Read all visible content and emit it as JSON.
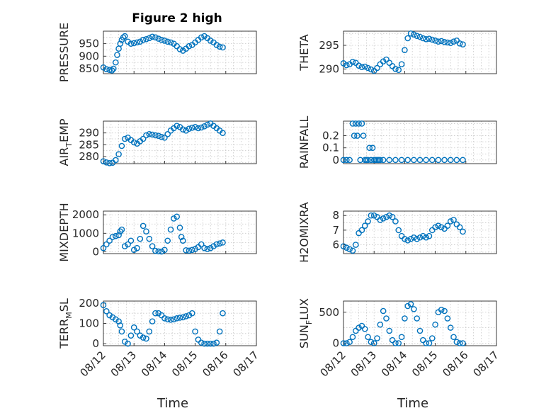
{
  "figure_title": "Figure 2 high",
  "x_axis_label": "Time",
  "x_tick_labels": [
    "08/12",
    "08/13",
    "08/14",
    "08/15",
    "08/16",
    "08/17"
  ],
  "chart_data": [
    {
      "type": "scatter",
      "ylabel": "PRESSURE",
      "ylabel_sub": "",
      "ylim": [
        830,
        1000
      ],
      "yticks": [
        850,
        900,
        950
      ],
      "x": [
        0,
        0.1,
        0.2,
        0.28,
        0.33,
        0.4,
        0.45,
        0.5,
        0.55,
        0.6,
        0.65,
        0.7,
        0.8,
        0.9,
        1.0,
        1.1,
        1.2,
        1.3,
        1.4,
        1.5,
        1.6,
        1.7,
        1.8,
        1.9,
        2.0,
        2.1,
        2.2,
        2.3,
        2.4,
        2.5,
        2.6,
        2.7,
        2.8,
        2.9,
        3.0,
        3.1,
        3.2,
        3.3,
        3.4,
        3.5,
        3.6,
        3.7,
        3.8,
        3.9
      ],
      "y": [
        855,
        848,
        845,
        843,
        850,
        875,
        905,
        930,
        950,
        965,
        975,
        980,
        958,
        950,
        952,
        955,
        958,
        965,
        968,
        972,
        978,
        975,
        970,
        965,
        962,
        958,
        955,
        950,
        940,
        928,
        922,
        930,
        940,
        945,
        955,
        965,
        975,
        980,
        972,
        962,
        955,
        945,
        938,
        935
      ]
    },
    {
      "type": "scatter",
      "ylabel": "THETA",
      "ylabel_sub": "",
      "ylim": [
        289,
        298
      ],
      "yticks": [
        290,
        295
      ],
      "x": [
        0,
        0.1,
        0.2,
        0.3,
        0.4,
        0.5,
        0.6,
        0.7,
        0.8,
        0.9,
        1.0,
        1.1,
        1.2,
        1.3,
        1.4,
        1.5,
        1.6,
        1.7,
        1.8,
        1.9,
        2.0,
        2.1,
        2.2,
        2.3,
        2.4,
        2.5,
        2.6,
        2.7,
        2.8,
        2.9,
        3.0,
        3.1,
        3.2,
        3.3,
        3.4,
        3.5,
        3.6,
        3.7,
        3.8,
        3.9
      ],
      "y": [
        291.2,
        290.8,
        291.0,
        291.5,
        291.3,
        290.7,
        290.4,
        290.5,
        290.2,
        289.9,
        289.6,
        290.2,
        291.0,
        291.6,
        292.0,
        291.3,
        290.6,
        290.0,
        289.8,
        291.0,
        294.0,
        296.5,
        297.5,
        297.3,
        297.0,
        296.8,
        296.5,
        296.3,
        296.4,
        296.2,
        296.0,
        295.8,
        295.9,
        295.7,
        295.6,
        295.5,
        295.8,
        296.0,
        295.4,
        295.2
      ]
    },
    {
      "type": "scatter",
      "ylabel": "AIR",
      "ylabel_sub": "T",
      "ylabel_rest": "EMP",
      "ylim": [
        277,
        295
      ],
      "yticks": [
        280,
        285,
        290
      ],
      "x": [
        0,
        0.1,
        0.2,
        0.3,
        0.4,
        0.5,
        0.6,
        0.7,
        0.8,
        0.9,
        1.0,
        1.1,
        1.2,
        1.3,
        1.4,
        1.5,
        1.6,
        1.7,
        1.8,
        1.9,
        2.0,
        2.1,
        2.2,
        2.3,
        2.4,
        2.5,
        2.6,
        2.7,
        2.8,
        2.9,
        3.0,
        3.1,
        3.2,
        3.3,
        3.4,
        3.5,
        3.6,
        3.7,
        3.8,
        3.9
      ],
      "y": [
        278.0,
        277.5,
        277.2,
        277.4,
        278.5,
        281.0,
        284.5,
        287.5,
        288.0,
        287.0,
        286.0,
        285.5,
        286.5,
        287.5,
        289.0,
        289.5,
        289.3,
        289.0,
        288.8,
        288.3,
        288.0,
        289.5,
        291.0,
        292.0,
        293.0,
        292.5,
        291.5,
        291.0,
        291.8,
        292.2,
        292.5,
        292.0,
        292.3,
        292.8,
        293.5,
        294.0,
        293.0,
        292.0,
        291.0,
        290.0
      ]
    },
    {
      "type": "scatter",
      "ylabel": "RAINFALL",
      "ylabel_sub": "",
      "ylim": [
        -0.03,
        0.32
      ],
      "yticks": [
        0,
        0.1,
        0.2
      ],
      "ytick_labels": [
        "0",
        "0.1",
        "0.2"
      ],
      "x": [
        0,
        0.1,
        0.2,
        0.3,
        0.35,
        0.4,
        0.45,
        0.5,
        0.55,
        0.6,
        0.65,
        0.7,
        0.75,
        0.8,
        0.85,
        0.9,
        0.95,
        1.0,
        1.05,
        1.1,
        1.15,
        1.2,
        1.3,
        1.5,
        1.7,
        1.9,
        2.1,
        2.3,
        2.5,
        2.7,
        2.9,
        3.1,
        3.3,
        3.5,
        3.7,
        3.9
      ],
      "y": [
        0,
        0,
        0,
        0.3,
        0.2,
        0.3,
        0.2,
        0.3,
        0,
        0.3,
        0.2,
        0,
        0,
        0,
        0.1,
        0,
        0.1,
        0,
        0,
        0,
        0,
        0,
        0,
        0,
        0,
        0,
        0,
        0,
        0,
        0,
        0,
        0,
        0,
        0,
        0,
        0
      ]
    },
    {
      "type": "scatter",
      "ylabel": "MIXDEPTH",
      "ylabel_sub": "",
      "ylim": [
        -100,
        2200
      ],
      "yticks": [
        0,
        1000,
        2000
      ],
      "x": [
        0,
        0.1,
        0.2,
        0.3,
        0.4,
        0.5,
        0.55,
        0.6,
        0.7,
        0.8,
        0.9,
        1.0,
        1.1,
        1.2,
        1.3,
        1.4,
        1.5,
        1.6,
        1.7,
        1.8,
        1.9,
        2.0,
        2.1,
        2.2,
        2.3,
        2.4,
        2.5,
        2.55,
        2.6,
        2.7,
        2.8,
        2.9,
        3.0,
        3.1,
        3.2,
        3.3,
        3.4,
        3.5,
        3.6,
        3.7,
        3.8,
        3.9
      ],
      "y": [
        200,
        400,
        600,
        800,
        850,
        900,
        1100,
        1200,
        300,
        400,
        600,
        100,
        200,
        700,
        1400,
        1100,
        700,
        300,
        50,
        20,
        10,
        100,
        600,
        1200,
        1800,
        1900,
        1300,
        800,
        600,
        80,
        60,
        100,
        150,
        250,
        400,
        200,
        150,
        200,
        300,
        400,
        450,
        500
      ]
    },
    {
      "type": "scatter",
      "ylabel": "H2OMIXRA",
      "ylabel_sub": "",
      "ylim": [
        5.4,
        8.3
      ],
      "yticks": [
        6,
        7,
        8
      ],
      "x": [
        0,
        0.1,
        0.2,
        0.3,
        0.4,
        0.5,
        0.6,
        0.7,
        0.8,
        0.9,
        1.0,
        1.1,
        1.2,
        1.3,
        1.4,
        1.5,
        1.6,
        1.7,
        1.8,
        1.9,
        2.0,
        2.1,
        2.2,
        2.3,
        2.4,
        2.5,
        2.6,
        2.7,
        2.8,
        2.9,
        3.0,
        3.1,
        3.2,
        3.3,
        3.4,
        3.5,
        3.6,
        3.7,
        3.8,
        3.9
      ],
      "y": [
        5.9,
        5.8,
        5.7,
        5.6,
        6.0,
        6.8,
        7.0,
        7.3,
        7.6,
        8.0,
        8.0,
        7.9,
        7.7,
        7.8,
        7.9,
        8.0,
        7.9,
        7.6,
        7.0,
        6.6,
        6.4,
        6.3,
        6.4,
        6.5,
        6.4,
        6.5,
        6.6,
        6.5,
        6.6,
        7.0,
        7.2,
        7.3,
        7.2,
        7.1,
        7.3,
        7.6,
        7.7,
        7.4,
        7.2,
        6.9
      ]
    },
    {
      "type": "scatter",
      "ylabel": "TERR",
      "ylabel_sub": "M",
      "ylabel_rest": "SL",
      "ylim": [
        -10,
        210
      ],
      "yticks": [
        0,
        100,
        200
      ],
      "x": [
        0,
        0.1,
        0.2,
        0.3,
        0.4,
        0.5,
        0.55,
        0.6,
        0.7,
        0.8,
        0.9,
        1.0,
        1.1,
        1.2,
        1.3,
        1.4,
        1.5,
        1.6,
        1.7,
        1.8,
        1.9,
        2.0,
        2.1,
        2.2,
        2.3,
        2.4,
        2.5,
        2.6,
        2.7,
        2.8,
        2.9,
        3.0,
        3.1,
        3.2,
        3.3,
        3.4,
        3.5,
        3.6,
        3.7,
        3.8,
        3.9
      ],
      "y": [
        190,
        160,
        140,
        130,
        120,
        110,
        90,
        60,
        10,
        0,
        40,
        80,
        60,
        40,
        30,
        25,
        60,
        110,
        150,
        150,
        140,
        125,
        120,
        118,
        120,
        125,
        128,
        130,
        135,
        140,
        150,
        60,
        20,
        5,
        0,
        0,
        0,
        0,
        5,
        60,
        150
      ]
    },
    {
      "type": "scatter",
      "ylabel": "SUN",
      "ylabel_sub": "F",
      "ylabel_rest": "LUX",
      "ylim": [
        -40,
        680
      ],
      "yticks": [
        0,
        500
      ],
      "x": [
        0,
        0.1,
        0.2,
        0.3,
        0.4,
        0.5,
        0.6,
        0.7,
        0.8,
        0.9,
        1.0,
        1.1,
        1.2,
        1.3,
        1.4,
        1.5,
        1.6,
        1.7,
        1.8,
        1.9,
        2.0,
        2.1,
        2.2,
        2.3,
        2.4,
        2.5,
        2.6,
        2.7,
        2.8,
        2.9,
        3.0,
        3.1,
        3.2,
        3.3,
        3.4,
        3.5,
        3.6,
        3.7,
        3.8,
        3.9
      ],
      "y": [
        0,
        0,
        20,
        100,
        200,
        250,
        280,
        230,
        100,
        20,
        0,
        80,
        300,
        520,
        400,
        200,
        50,
        0,
        0,
        100,
        400,
        600,
        630,
        550,
        400,
        200,
        50,
        0,
        0,
        80,
        300,
        500,
        540,
        520,
        400,
        250,
        100,
        20,
        0,
        0
      ]
    }
  ]
}
